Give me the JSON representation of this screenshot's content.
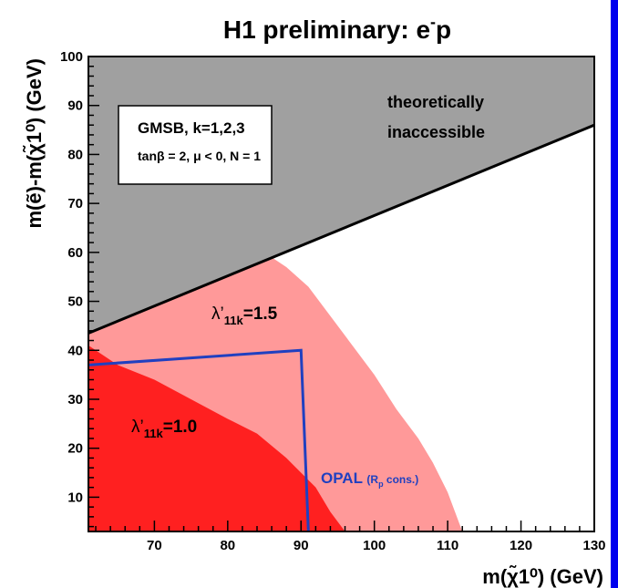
{
  "chart_data": {
    "type": "area",
    "title": "H1 preliminary: e",
    "title_superscript": "-",
    "title_suffix": "p",
    "xlabel": "m(χ̃1⁰) (GeV)",
    "ylabel": "m(ẽ)-m(χ̃1⁰) (GeV)",
    "xlim": [
      61,
      130
    ],
    "ylim": [
      3,
      100
    ],
    "x_ticks": [
      70,
      80,
      90,
      100,
      110,
      120,
      130
    ],
    "y_ticks": [
      10,
      20,
      30,
      40,
      50,
      60,
      70,
      80,
      90,
      100
    ],
    "grid": false,
    "legend_box": {
      "line1": "GMSB, k=1,2,3",
      "line2": "tanβ = 2,  μ < 0,  N = 1"
    },
    "regions": [
      {
        "name": "theoretically inaccessible",
        "label_line1": "theoretically",
        "label_line2": "inaccessible",
        "color": "#a0a0a0",
        "boundary": [
          [
            61,
            43.5
          ],
          [
            130,
            86
          ]
        ]
      },
      {
        "label": "λ'11k=1.5",
        "label_main": "λ’",
        "label_sub": "11k",
        "label_tail": "=1.5",
        "color": "#ff9999",
        "boundary": [
          [
            61,
            43.5
          ],
          [
            86,
            59
          ],
          [
            88,
            57
          ],
          [
            91,
            53
          ],
          [
            95,
            45
          ],
          [
            100,
            35
          ],
          [
            103,
            28
          ],
          [
            106,
            22
          ],
          [
            108,
            17
          ],
          [
            110,
            11
          ],
          [
            111,
            7
          ],
          [
            112,
            3
          ]
        ]
      },
      {
        "label": "λ'11k=1.0",
        "label_main": "λ’",
        "label_sub": "11k",
        "label_tail": "=1.0",
        "color": "#ff2020",
        "boundary": [
          [
            61,
            41
          ],
          [
            65,
            37
          ],
          [
            70,
            34
          ],
          [
            75,
            30
          ],
          [
            80,
            26
          ],
          [
            84,
            23
          ],
          [
            88,
            18
          ],
          [
            92,
            12
          ],
          [
            94,
            7
          ],
          [
            96,
            3
          ]
        ]
      }
    ],
    "series": [
      {
        "name": "OPAL",
        "label": "OPAL",
        "label_note": "(R",
        "label_note_sub": "p",
        "label_note_tail": " cons.)",
        "color": "#2040c0",
        "x": [
          61,
          90,
          91
        ],
        "y": [
          37,
          40,
          3
        ]
      }
    ],
    "boundary_line": {
      "color": "#000000",
      "x": [
        61,
        130
      ],
      "y": [
        43.5,
        86
      ]
    }
  }
}
